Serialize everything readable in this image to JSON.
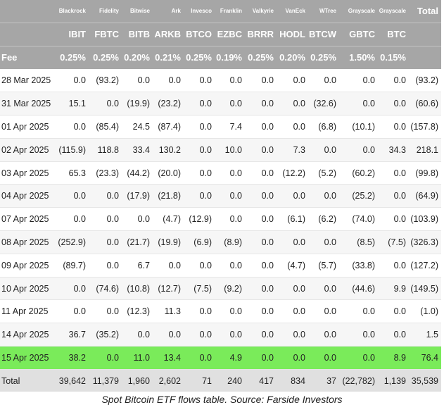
{
  "issuers": [
    "",
    "Blackrock",
    "Fidelity",
    "Bitwise",
    "Ark",
    "Invesco",
    "Franklin",
    "Valkyrie",
    "VanEck",
    "WTree",
    "Grayscale",
    "Grayscale",
    "Total"
  ],
  "tickers": [
    "",
    "IBIT",
    "FBTC",
    "BITB",
    "ARKB",
    "BTCO",
    "EZBC",
    "BRRR",
    "HODL",
    "BTCW",
    "GBTC",
    "BTC",
    ""
  ],
  "fee_label": "Fee",
  "fees": [
    "0.25%",
    "0.25%",
    "0.20%",
    "0.21%",
    "0.25%",
    "0.19%",
    "0.25%",
    "0.20%",
    "0.25%",
    "1.50%",
    "0.15%",
    ""
  ],
  "rows": [
    {
      "date": "28 Mar 2025",
      "cells": [
        "0.0",
        "(93.2)",
        "0.0",
        "0.0",
        "0.0",
        "0.0",
        "0.0",
        "0.0",
        "0.0",
        "0.0",
        "0.0",
        "(93.2)"
      ]
    },
    {
      "date": "31 Mar 2025",
      "cells": [
        "15.1",
        "0.0",
        "(19.9)",
        "(23.2)",
        "0.0",
        "0.0",
        "0.0",
        "0.0",
        "(32.6)",
        "0.0",
        "0.0",
        "(60.6)"
      ]
    },
    {
      "date": "01 Apr 2025",
      "cells": [
        "0.0",
        "(85.4)",
        "24.5",
        "(87.4)",
        "0.0",
        "7.4",
        "0.0",
        "0.0",
        "(6.8)",
        "(10.1)",
        "0.0",
        "(157.8)"
      ]
    },
    {
      "date": "02 Apr 2025",
      "cells": [
        "(115.9)",
        "118.8",
        "33.4",
        "130.2",
        "0.0",
        "10.0",
        "0.0",
        "7.3",
        "0.0",
        "0.0",
        "34.3",
        "218.1"
      ]
    },
    {
      "date": "03 Apr 2025",
      "cells": [
        "65.3",
        "(23.3)",
        "(44.2)",
        "(20.0)",
        "0.0",
        "0.0",
        "0.0",
        "(12.2)",
        "(5.2)",
        "(60.2)",
        "0.0",
        "(99.8)"
      ]
    },
    {
      "date": "04 Apr 2025",
      "cells": [
        "0.0",
        "0.0",
        "(17.9)",
        "(21.8)",
        "0.0",
        "0.0",
        "0.0",
        "0.0",
        "0.0",
        "(25.2)",
        "0.0",
        "(64.9)"
      ]
    },
    {
      "date": "07 Apr 2025",
      "cells": [
        "0.0",
        "0.0",
        "0.0",
        "(4.7)",
        "(12.9)",
        "0.0",
        "0.0",
        "(6.1)",
        "(6.2)",
        "(74.0)",
        "0.0",
        "(103.9)"
      ]
    },
    {
      "date": "08 Apr 2025",
      "cells": [
        "(252.9)",
        "0.0",
        "(21.7)",
        "(19.9)",
        "(6.9)",
        "(8.9)",
        "0.0",
        "0.0",
        "0.0",
        "(8.5)",
        "(7.5)",
        "(326.3)"
      ]
    },
    {
      "date": "09 Apr 2025",
      "cells": [
        "(89.7)",
        "0.0",
        "6.7",
        "0.0",
        "0.0",
        "0.0",
        "0.0",
        "(4.7)",
        "(5.7)",
        "(33.8)",
        "0.0",
        "(127.2)"
      ]
    },
    {
      "date": "10 Apr 2025",
      "cells": [
        "0.0",
        "(74.6)",
        "(10.8)",
        "(12.7)",
        "(7.5)",
        "(9.2)",
        "0.0",
        "0.0",
        "0.0",
        "(44.6)",
        "9.9",
        "(149.5)"
      ]
    },
    {
      "date": "11 Apr 2025",
      "cells": [
        "0.0",
        "0.0",
        "(12.3)",
        "11.3",
        "0.0",
        "0.0",
        "0.0",
        "0.0",
        "0.0",
        "0.0",
        "0.0",
        "(1.0)"
      ]
    },
    {
      "date": "14 Apr 2025",
      "cells": [
        "36.7",
        "(35.2)",
        "0.0",
        "0.0",
        "0.0",
        "0.0",
        "0.0",
        "0.0",
        "0.0",
        "0.0",
        "0.0",
        "1.5"
      ]
    },
    {
      "date": "15 Apr 2025",
      "cells": [
        "38.2",
        "0.0",
        "11.0",
        "13.4",
        "0.0",
        "4.9",
        "0.0",
        "0.0",
        "0.0",
        "0.0",
        "8.9",
        "76.4"
      ]
    }
  ],
  "total_row": {
    "label": "Total",
    "cells": [
      "39,642",
      "11,379",
      "1,960",
      "2,602",
      "71",
      "240",
      "417",
      "834",
      "37",
      "(22,782)",
      "1,139",
      "35,539"
    ]
  },
  "caption": "Spot Bitcoin ETF flows table. Source: Farside Investors",
  "colors": {
    "header_bg": "#a6a6a6",
    "highlight_row": "#7aeb5a",
    "negative_text": "#d42a2a",
    "total_row_bg": "#e0e0e0"
  }
}
